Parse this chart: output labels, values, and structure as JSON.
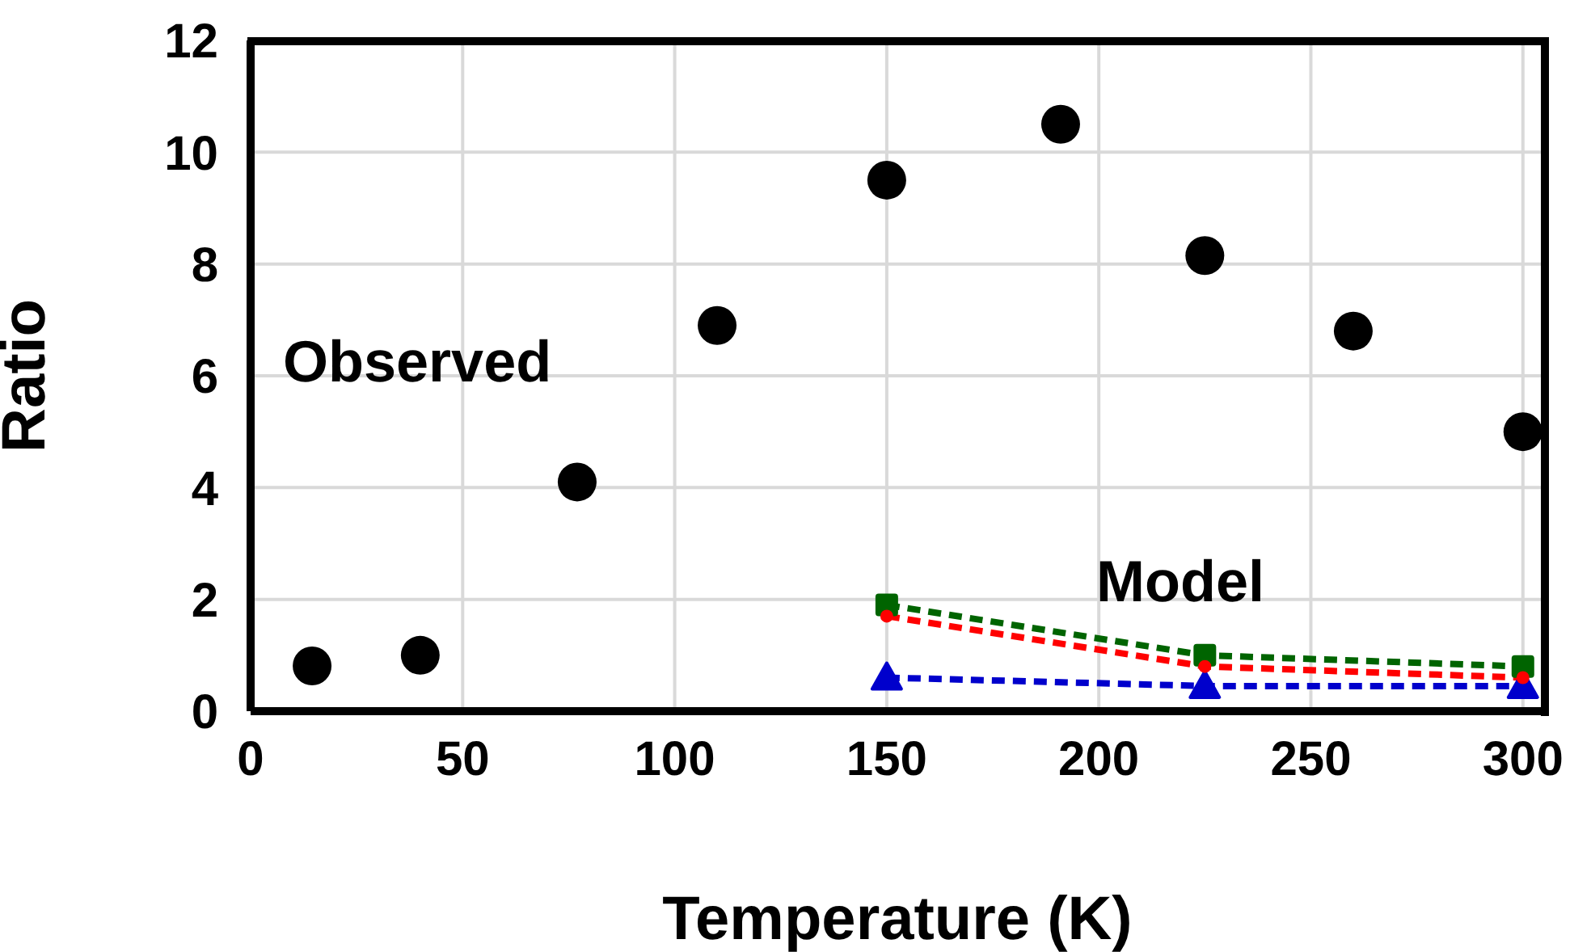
{
  "chart_data": {
    "type": "line",
    "xlabel": "Temperature (K)",
    "ylabel": "Ratio",
    "xlim": [
      0,
      305
    ],
    "xticks": [
      0,
      50,
      100,
      150,
      200,
      250,
      300
    ],
    "ylim": [
      0,
      12
    ],
    "yticks": [
      0,
      2,
      4,
      6,
      8,
      10,
      12
    ],
    "grid": true,
    "legend": false,
    "line_style": "dashed",
    "annotations": [
      "Observed",
      "Model"
    ],
    "series": [
      {
        "type": "scatter",
        "color": "#000000",
        "marker": "circle",
        "x": [
          14.5,
          40,
          77,
          110,
          150,
          191,
          225,
          260,
          300
        ],
        "values": [
          0.81,
          1.0,
          4.1,
          6.9,
          9.5,
          10.5,
          8.15,
          6.8,
          5.0
        ]
      },
      {
        "color": "#ff0000",
        "marker": "circle",
        "x": [
          150,
          225,
          300
        ],
        "values": [
          1.7,
          0.8,
          0.6
        ]
      },
      {
        "color": "#006400",
        "marker": "square",
        "x": [
          150,
          225,
          300
        ],
        "values": [
          1.9,
          1.0,
          0.8
        ]
      },
      {
        "color": "#0000cc",
        "marker": "triangle",
        "x": [
          150,
          225,
          300
        ],
        "values": [
          0.6,
          0.45,
          0.45
        ]
      }
    ]
  }
}
